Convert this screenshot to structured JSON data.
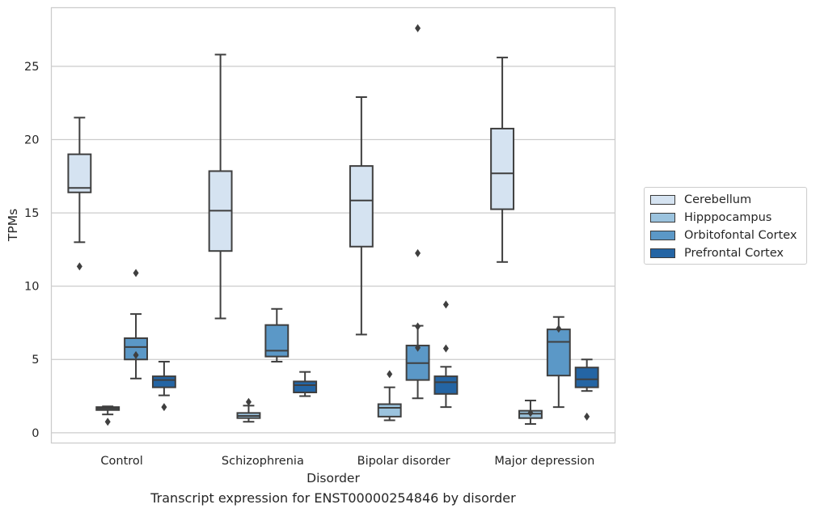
{
  "chart_data": {
    "type": "box",
    "title": "Transcript expression for ENST00000254846 by disorder",
    "xlabel": "Disorder",
    "ylabel": "TPMs",
    "ylim": [
      -0.7,
      29.0
    ],
    "yticks": [
      0,
      5,
      10,
      15,
      20,
      25
    ],
    "grid": "horizontal",
    "legend_position": "right",
    "categories": [
      "Control",
      "Schizophrenia",
      "Bipolar disorder",
      "Major depression"
    ],
    "series": [
      {
        "name": "Cerebellum",
        "color": "#d5e3f1",
        "boxes": [
          {
            "whisker_low": 13.0,
            "q1": 16.4,
            "median": 16.7,
            "q3": 19.0,
            "whisker_high": 21.5,
            "outliers": [
              11.35
            ]
          },
          {
            "whisker_low": 7.8,
            "q1": 12.4,
            "median": 15.15,
            "q3": 17.85,
            "whisker_high": 25.8,
            "outliers": []
          },
          {
            "whisker_low": 6.7,
            "q1": 12.7,
            "median": 15.85,
            "q3": 18.2,
            "whisker_high": 22.9,
            "outliers": []
          },
          {
            "whisker_low": 11.65,
            "q1": 15.25,
            "median": 17.7,
            "q3": 20.75,
            "whisker_high": 25.6,
            "outliers": []
          }
        ]
      },
      {
        "name": "Hipppocampus",
        "color": "#9bc3de",
        "boxes": [
          {
            "whisker_low": 1.25,
            "q1": 1.55,
            "median": 1.65,
            "q3": 1.75,
            "whisker_high": 1.8,
            "outliers": [
              0.75
            ]
          },
          {
            "whisker_low": 0.75,
            "q1": 1.0,
            "median": 1.15,
            "q3": 1.35,
            "whisker_high": 1.85,
            "outliers": [
              2.1
            ]
          },
          {
            "whisker_low": 0.85,
            "q1": 1.1,
            "median": 1.7,
            "q3": 1.95,
            "whisker_high": 3.1,
            "outliers": [
              4.0
            ]
          },
          {
            "whisker_low": 0.6,
            "q1": 1.0,
            "median": 1.3,
            "q3": 1.5,
            "whisker_high": 2.2,
            "outliers": [
              1.35
            ]
          }
        ]
      },
      {
        "name": "Orbitofontal Cortex",
        "color": "#5b98c7",
        "boxes": [
          {
            "whisker_low": 3.7,
            "q1": 5.0,
            "median": 5.85,
            "q3": 6.45,
            "whisker_high": 8.1,
            "outliers": [
              5.3,
              10.9
            ]
          },
          {
            "whisker_low": 4.85,
            "q1": 5.2,
            "median": 5.6,
            "q3": 7.35,
            "whisker_high": 8.45,
            "outliers": []
          },
          {
            "whisker_low": 2.35,
            "q1": 3.6,
            "median": 4.75,
            "q3": 5.95,
            "whisker_high": 7.3,
            "outliers": [
              5.8,
              7.25,
              12.25,
              27.6
            ]
          },
          {
            "whisker_low": 1.75,
            "q1": 3.9,
            "median": 6.2,
            "q3": 7.05,
            "whisker_high": 7.9,
            "outliers": [
              7.1
            ]
          }
        ]
      },
      {
        "name": "Prefrontal Cortex",
        "color": "#2465a4",
        "boxes": [
          {
            "whisker_low": 2.55,
            "q1": 3.1,
            "median": 3.6,
            "q3": 3.85,
            "whisker_high": 4.85,
            "outliers": [
              1.75
            ]
          },
          {
            "whisker_low": 2.5,
            "q1": 2.75,
            "median": 3.25,
            "q3": 3.5,
            "whisker_high": 4.15,
            "outliers": []
          },
          {
            "whisker_low": 1.75,
            "q1": 2.65,
            "median": 3.45,
            "q3": 3.85,
            "whisker_high": 4.5,
            "outliers": [
              5.75,
              8.75
            ]
          },
          {
            "whisker_low": 2.85,
            "q1": 3.1,
            "median": 3.65,
            "q3": 4.45,
            "whisker_high": 5.0,
            "outliers": [
              1.1
            ]
          }
        ]
      }
    ]
  }
}
